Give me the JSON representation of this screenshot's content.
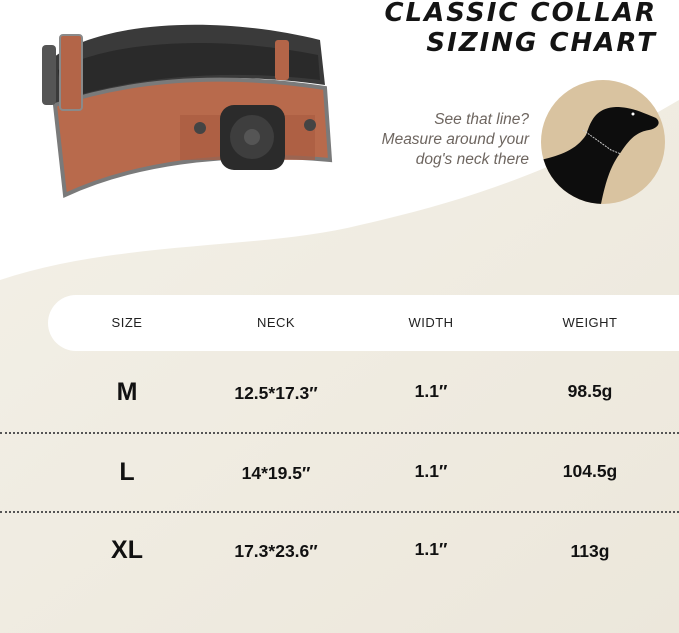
{
  "title": {
    "line1": "CLASSIC COLLAR",
    "line2": "SIZING CHART"
  },
  "hint": {
    "line1": "See that line?",
    "line2": "Measure around your",
    "line3": "dog's neck there"
  },
  "colors": {
    "background_beige": "#f1ede3",
    "circle_tan": "#d9c3a0",
    "collar_leather": "#b86a4c",
    "text_dark": "#111111"
  },
  "table": {
    "headers": [
      "SIZE",
      "NECK",
      "WIDTH",
      "WEIGHT"
    ],
    "rows": [
      {
        "size": "M",
        "neck": "12.5*17.3″",
        "width": "1.1″",
        "weight": "98.5g"
      },
      {
        "size": "L",
        "neck": "14*19.5″",
        "width": "1.1″",
        "weight": "104.5g"
      },
      {
        "size": "XL",
        "neck": "17.3*23.6″",
        "width": "1.1″",
        "weight": "113g"
      }
    ]
  }
}
